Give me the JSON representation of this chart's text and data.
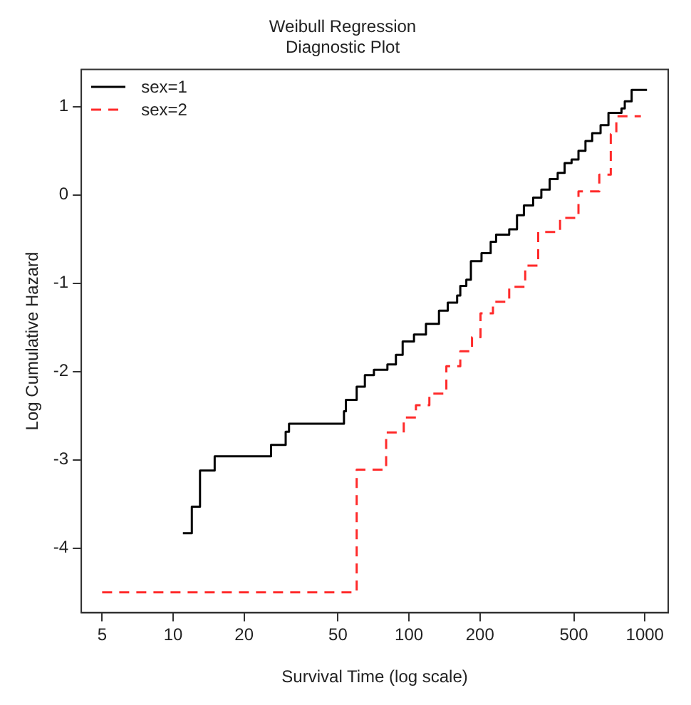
{
  "chart_data": {
    "type": "step",
    "title": "Weibull Regression\nDiagnostic Plot",
    "xlabel": "Survival Time (log scale)",
    "ylabel": "Log Cumulative Hazard",
    "log": "x",
    "xlim": [
      4.08,
      1256
    ],
    "xticks": [
      5,
      10,
      20,
      50,
      100,
      200,
      500,
      1000
    ],
    "ylim": [
      -4.73,
      1.42
    ],
    "yticks": [
      -4,
      -3,
      -2,
      -1,
      0,
      1
    ],
    "grid": false,
    "legend": "top left",
    "series": [
      {
        "name": "sex=1",
        "color": "#000000",
        "line_style": "solid",
        "x": [
          11,
          12,
          13,
          15,
          26,
          30,
          31,
          53,
          54,
          60,
          65,
          71,
          81,
          88,
          94,
          105,
          118,
          134,
          146,
          160,
          165,
          175,
          183,
          203,
          222,
          234,
          266,
          287,
          307,
          336,
          364,
          395,
          427,
          457,
          489,
          523,
          560,
          598,
          649,
          701,
          796,
          822,
          879,
          1021
        ],
        "values": [
          -3.83,
          -3.53,
          -3.12,
          -2.96,
          -2.83,
          -2.68,
          -2.59,
          -2.45,
          -2.32,
          -2.17,
          -2.04,
          -1.98,
          -1.92,
          -1.81,
          -1.66,
          -1.58,
          -1.46,
          -1.31,
          -1.22,
          -1.14,
          -1.03,
          -0.96,
          -0.75,
          -0.66,
          -0.53,
          -0.45,
          -0.39,
          -0.23,
          -0.12,
          -0.03,
          0.06,
          0.18,
          0.25,
          0.36,
          0.4,
          0.5,
          0.61,
          0.7,
          0.79,
          0.93,
          0.98,
          1.06,
          1.19,
          1.19
        ]
      },
      {
        "name": "sex=2",
        "color": "#ff2a2a",
        "line_style": "dashed",
        "x": [
          5,
          60,
          80,
          95,
          107,
          122,
          144,
          165,
          185,
          201,
          227,
          266,
          311,
          353,
          437,
          523,
          641,
          717,
          757,
          962
        ],
        "values": [
          -4.5,
          -3.11,
          -2.69,
          -2.52,
          -2.38,
          -2.25,
          -1.94,
          -1.77,
          -1.61,
          -1.34,
          -1.21,
          -1.04,
          -0.8,
          -0.42,
          -0.26,
          0.04,
          0.23,
          0.69,
          0.89,
          0.89
        ]
      }
    ]
  }
}
